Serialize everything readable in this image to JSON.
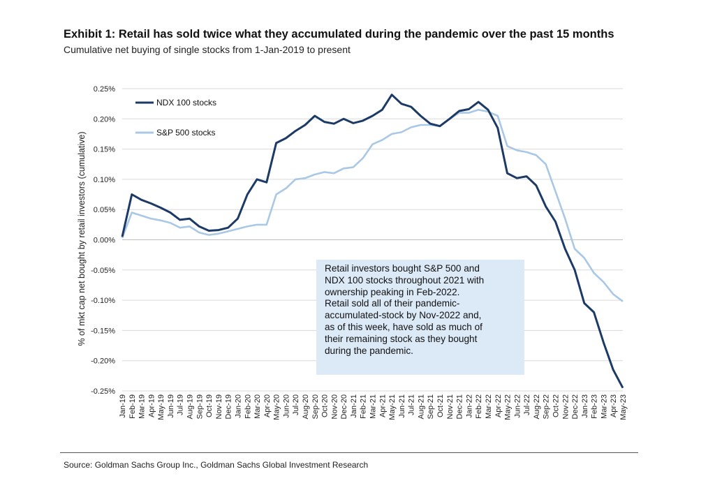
{
  "title": "Exhibit 1: Retail has sold twice what they accumulated during the pandemic over the past 15 months",
  "subtitle": "Cumulative net buying of single stocks from 1-Jan-2019 to present",
  "source": "Source: Goldman Sachs Group Inc., Goldman Sachs Global Investment Research",
  "annotation_lines": [
    "Retail investors bought S&P 500 and",
    "NDX 100 stocks throughout 2021 with",
    "ownership peaking in Feb-2022.",
    "Retail sold all of their pandemic-",
    "accumulated-stock by Nov-2022 and,",
    "as of this week, have sold as much of",
    "their remaining stock as they bought",
    "during the pandemic."
  ],
  "colors": {
    "ndx": "#1c3a66",
    "sp": "#a9c8e6",
    "grid": "#d9d9d9",
    "annotation_bg": "#dce9f7"
  },
  "chart_data": {
    "type": "line",
    "ylabel": "% of mkt cap net bought by retail investors (cumulative)",
    "xlabel": "",
    "ylim": [
      -0.25,
      0.25
    ],
    "yticks": [
      "0.25%",
      "0.20%",
      "0.15%",
      "0.10%",
      "0.05%",
      "0.00%",
      "-0.05%",
      "-0.10%",
      "-0.15%",
      "-0.20%",
      "-0.25%"
    ],
    "x_ticks": [
      "Jan-19",
      "Feb-19",
      "Mar-19",
      "Apr-19",
      "May-19",
      "Jun-19",
      "Jul-19",
      "Aug-19",
      "Sep-19",
      "Oct-19",
      "Nov-19",
      "Dec-19",
      "Jan-20",
      "Feb-20",
      "Mar-20",
      "Apr-20",
      "May-20",
      "Jun-20",
      "Jul-20",
      "Aug-20",
      "Sep-20",
      "Oct-20",
      "Nov-20",
      "Dec-20",
      "Jan-21",
      "Feb-21",
      "Mar-21",
      "Apr-21",
      "May-21",
      "Jun-21",
      "Jul-21",
      "Aug-21",
      "Sep-21",
      "Oct-21",
      "Nov-21",
      "Dec-21",
      "Jan-22",
      "Feb-22",
      "Mar-22",
      "Apr-22",
      "May-22",
      "Jun-22",
      "Jul-22",
      "Aug-22",
      "Sep-22",
      "Oct-22",
      "Nov-22",
      "Dec-22",
      "Jan-23",
      "Feb-23",
      "Mar-23",
      "Apr-23",
      "May-23"
    ],
    "grid": "horizontal",
    "legend_position": "top-left",
    "series": [
      {
        "name": "NDX 100 stocks",
        "values": [
          0.005,
          0.075,
          0.066,
          0.06,
          0.053,
          0.045,
          0.033,
          0.035,
          0.022,
          0.015,
          0.016,
          0.02,
          0.035,
          0.075,
          0.1,
          0.095,
          0.16,
          0.168,
          0.18,
          0.19,
          0.205,
          0.195,
          0.192,
          0.2,
          0.193,
          0.197,
          0.205,
          0.215,
          0.24,
          0.225,
          0.22,
          0.205,
          0.192,
          0.188,
          0.2,
          0.213,
          0.216,
          0.228,
          0.215,
          0.185,
          0.11,
          0.102,
          0.105,
          0.09,
          0.055,
          0.03,
          -0.015,
          -0.05,
          -0.105,
          -0.12,
          -0.17,
          -0.215,
          -0.245
        ]
      },
      {
        "name": "S&P 500 stocks",
        "values": [
          0.003,
          0.045,
          0.04,
          0.035,
          0.032,
          0.028,
          0.02,
          0.022,
          0.012,
          0.008,
          0.01,
          0.014,
          0.018,
          0.022,
          0.025,
          0.025,
          0.075,
          0.085,
          0.1,
          0.102,
          0.108,
          0.112,
          0.11,
          0.118,
          0.12,
          0.135,
          0.158,
          0.165,
          0.175,
          0.178,
          0.186,
          0.19,
          0.19,
          0.188,
          0.2,
          0.21,
          0.21,
          0.215,
          0.212,
          0.205,
          0.155,
          0.148,
          0.145,
          0.14,
          0.125,
          0.08,
          0.035,
          -0.015,
          -0.03,
          -0.055,
          -0.07,
          -0.09,
          -0.102
        ]
      }
    ]
  }
}
